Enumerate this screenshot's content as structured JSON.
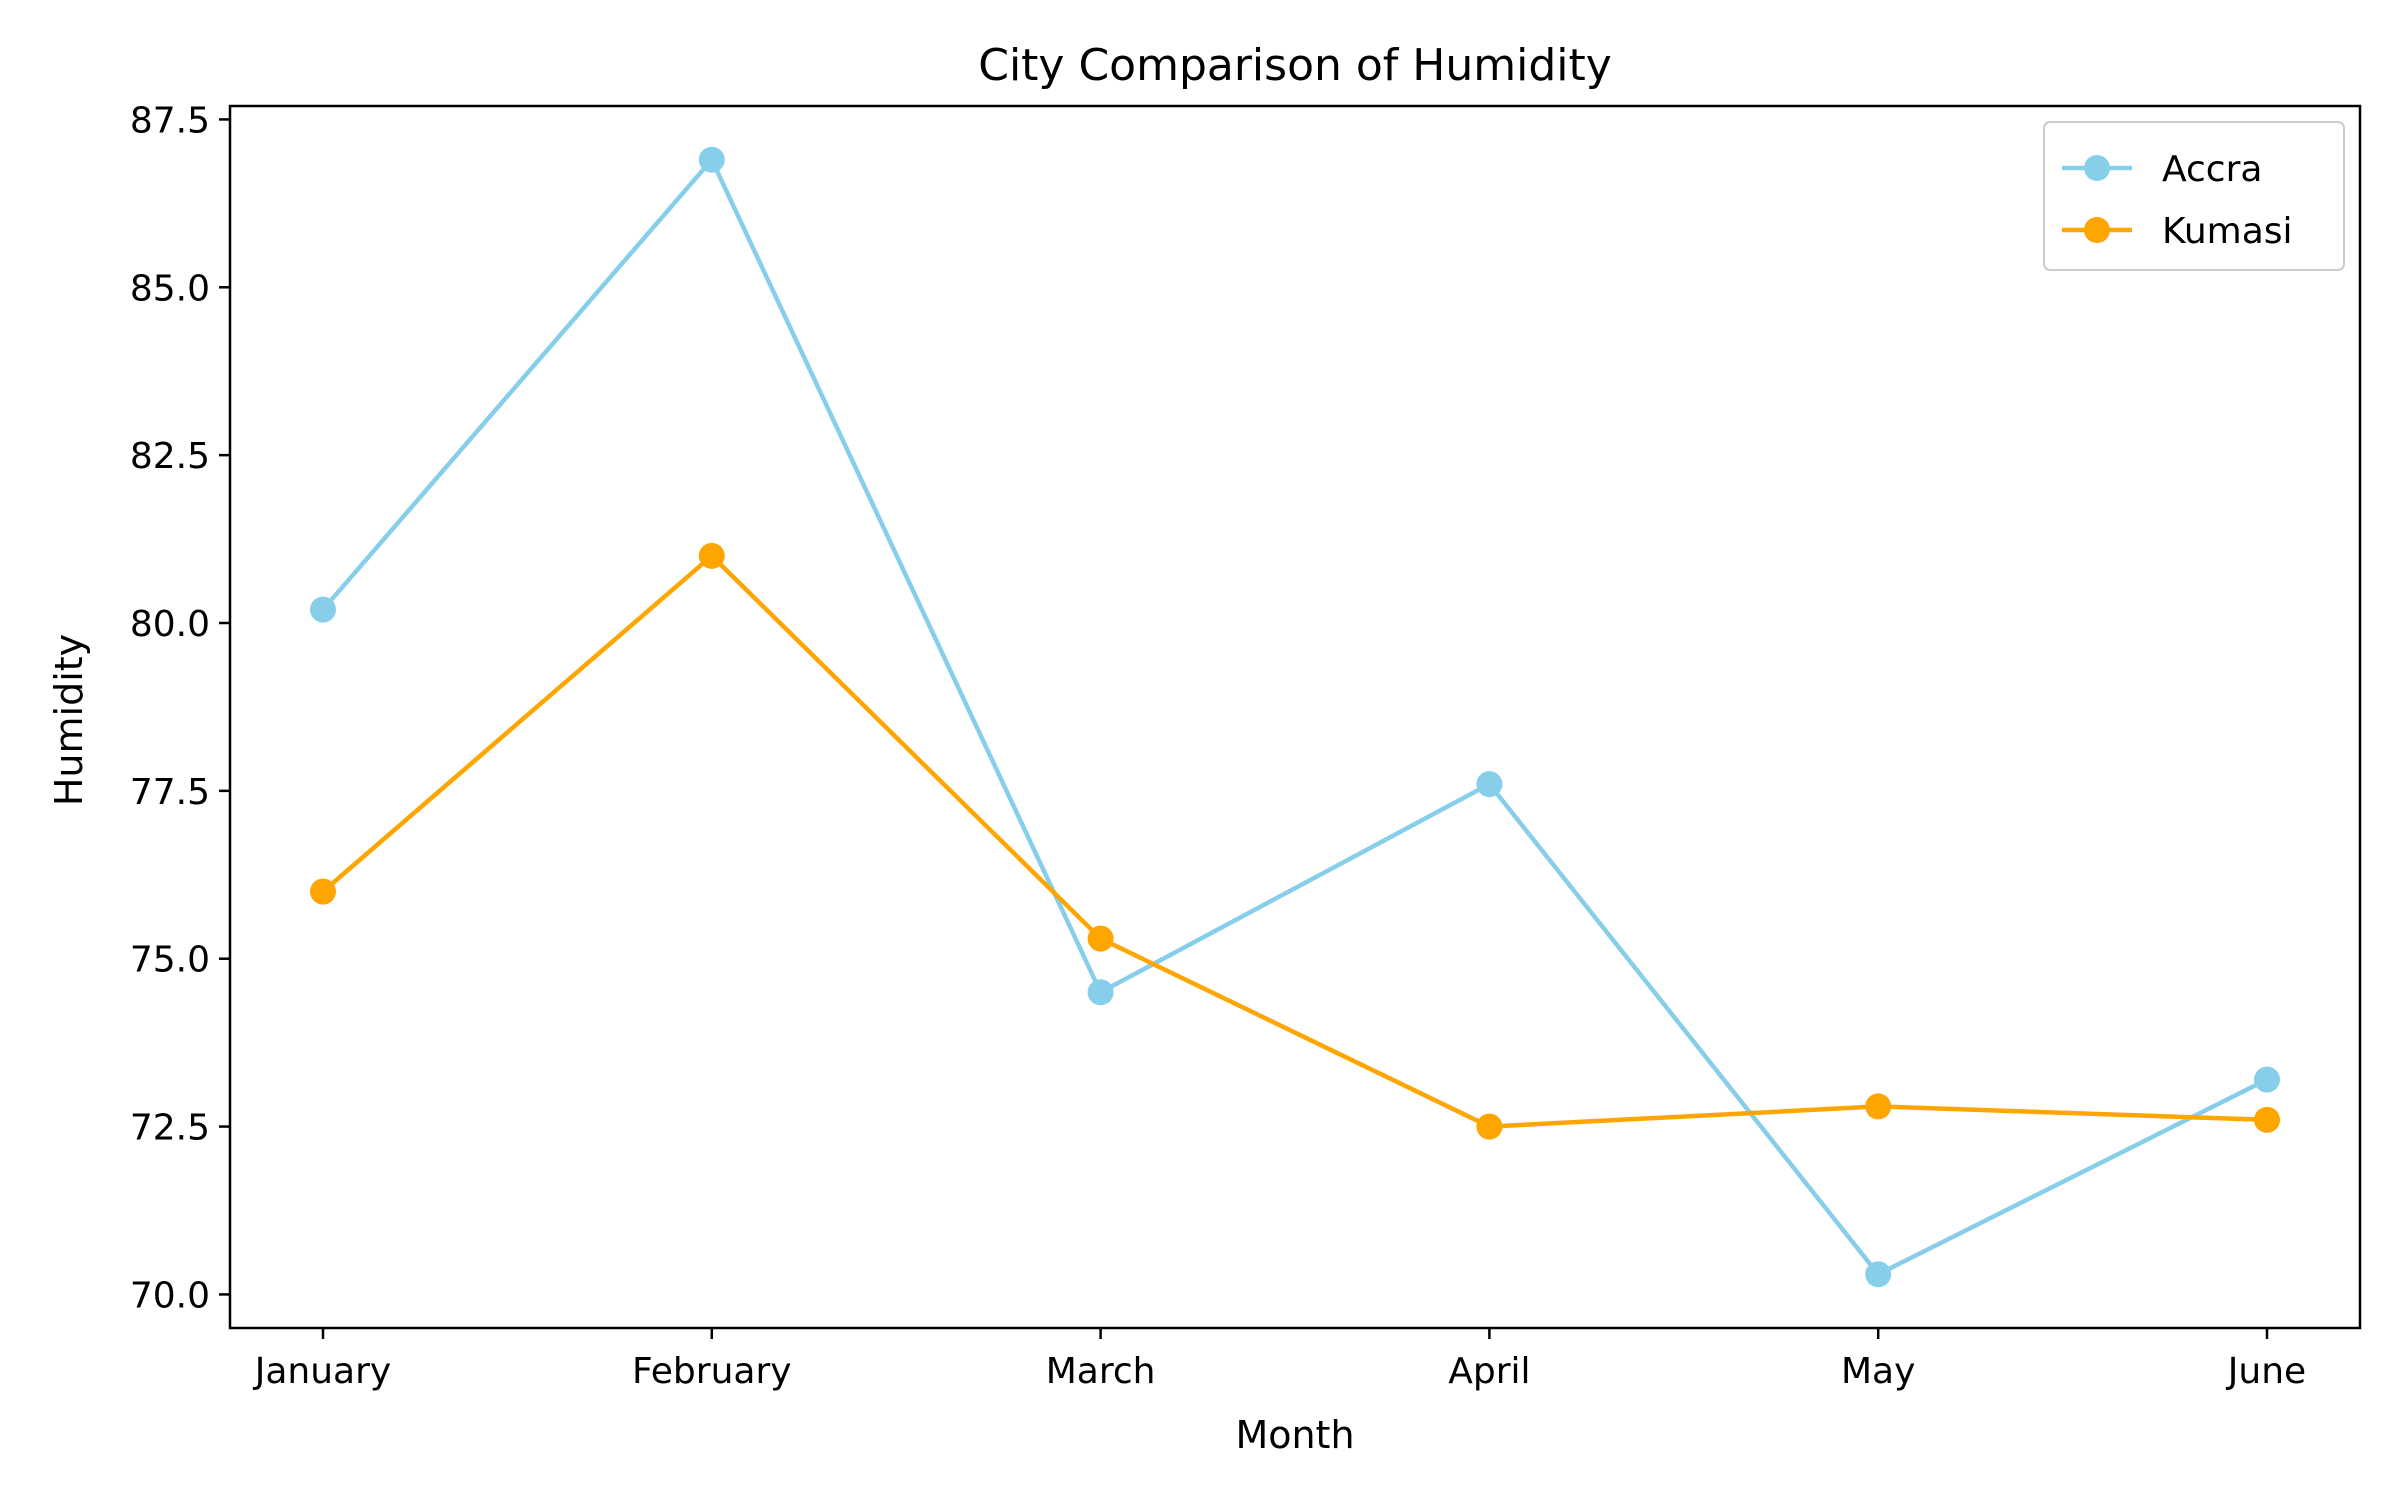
{
  "chart_data": {
    "type": "line",
    "title": "City Comparison of Humidity",
    "xlabel": "Month",
    "ylabel": "Humidity",
    "categories": [
      "January",
      "February",
      "March",
      "April",
      "May",
      "June"
    ],
    "ylim": [
      69.5,
      87.7
    ],
    "yticks": [
      "70.0",
      "72.5",
      "75.0",
      "77.5",
      "80.0",
      "82.5",
      "85.0",
      "87.5"
    ],
    "series": [
      {
        "name": "Accra",
        "color": "#87CEEB",
        "values": [
          80.2,
          86.9,
          74.5,
          77.6,
          70.3,
          73.2
        ]
      },
      {
        "name": "Kumasi",
        "color": "#FFA500",
        "values": [
          76.0,
          81.0,
          75.3,
          72.5,
          72.8,
          72.6
        ]
      }
    ],
    "legend": {
      "position": "top-right"
    },
    "grid": false,
    "marker": "circle"
  }
}
